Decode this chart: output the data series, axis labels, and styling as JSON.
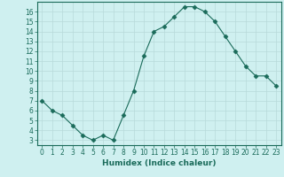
{
  "x": [
    0,
    1,
    2,
    3,
    4,
    5,
    6,
    7,
    8,
    9,
    10,
    11,
    12,
    13,
    14,
    15,
    16,
    17,
    18,
    19,
    20,
    21,
    22,
    23
  ],
  "y": [
    7.0,
    6.0,
    5.5,
    4.5,
    3.5,
    3.0,
    3.5,
    3.0,
    5.5,
    8.0,
    11.5,
    14.0,
    14.5,
    15.5,
    16.5,
    16.5,
    16.0,
    15.0,
    13.5,
    12.0,
    10.5,
    9.5,
    9.5,
    8.5
  ],
  "xlabel": "Humidex (Indice chaleur)",
  "xlim": [
    -0.5,
    23.5
  ],
  "ylim": [
    2.5,
    17.0
  ],
  "yticks": [
    3,
    4,
    5,
    6,
    7,
    8,
    9,
    10,
    11,
    12,
    13,
    14,
    15,
    16
  ],
  "xticks": [
    0,
    1,
    2,
    3,
    4,
    5,
    6,
    7,
    8,
    9,
    10,
    11,
    12,
    13,
    14,
    15,
    16,
    17,
    18,
    19,
    20,
    21,
    22,
    23
  ],
  "line_color": "#1a6b5a",
  "marker": "D",
  "marker_size": 2.5,
  "bg_color": "#cff0f0",
  "grid_color": "#b8dada",
  "label_fontsize": 6.5,
  "tick_fontsize": 5.5
}
